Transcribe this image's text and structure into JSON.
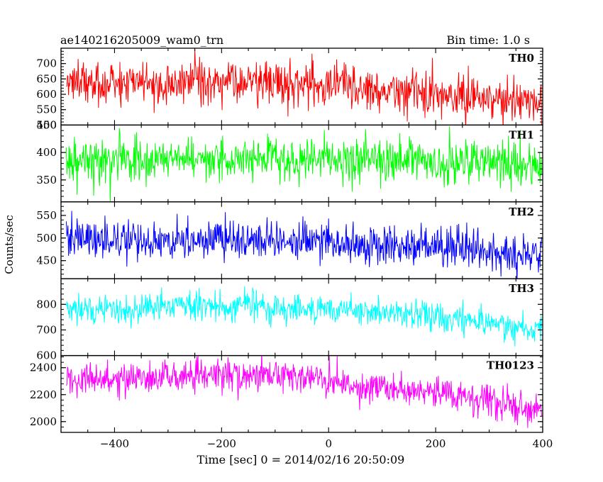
{
  "chart_data": {
    "type": "line",
    "title": "ae140216205009_wam0_trn",
    "subtitle": "Bin time: 1.0 s",
    "xlabel": "Time [sec] 0 = 2014/02/16 20:50:09",
    "ylabel": "Counts/sec",
    "xlim": [
      -500,
      400
    ],
    "xticks": [
      "-400",
      "-200",
      "0",
      "200",
      "400"
    ],
    "bin_time_s": 1.0,
    "grid": false,
    "panels": [
      {
        "name": "TH0",
        "color": "#ff0000",
        "ylim": [
          500,
          750
        ],
        "yticks": [
          "500",
          "550",
          "600",
          "650",
          "700"
        ],
        "trend": {
          "x": [
            -500,
            -300,
            -100,
            0,
            100,
            200,
            300,
            400
          ],
          "y": [
            635,
            640,
            640,
            630,
            615,
            600,
            585,
            565
          ]
        },
        "noise_sd": 35
      },
      {
        "name": "TH1",
        "color": "#00ff00",
        "ylim": [
          310,
          450
        ],
        "yticks": [
          "350",
          "400",
          "450"
        ],
        "trend": {
          "x": [
            -500,
            0,
            200,
            400
          ],
          "y": [
            388,
            388,
            385,
            380
          ]
        },
        "noise_sd": 20
      },
      {
        "name": "TH2",
        "color": "#0000ff",
        "ylim": [
          410,
          580
        ],
        "yticks": [
          "450",
          "500",
          "550"
        ],
        "trend": {
          "x": [
            -500,
            -200,
            0,
            200,
            400
          ],
          "y": [
            495,
            495,
            490,
            480,
            465
          ]
        },
        "noise_sd": 22
      },
      {
        "name": "TH3",
        "color": "#00ffff",
        "ylim": [
          600,
          900
        ],
        "yticks": [
          "600",
          "700",
          "800"
        ],
        "trend": {
          "x": [
            -500,
            -200,
            0,
            200,
            300,
            400
          ],
          "y": [
            780,
            795,
            785,
            755,
            725,
            695
          ]
        },
        "noise_sd": 28
      },
      {
        "name": "TH0123",
        "color": "#ff00ff",
        "ylim": [
          1920,
          2490
        ],
        "yticks": [
          "2000",
          "2200",
          "2400"
        ],
        "trend": {
          "x": [
            -500,
            -200,
            -50,
            50,
            200,
            300,
            400
          ],
          "y": [
            2310,
            2335,
            2340,
            2270,
            2220,
            2150,
            2080
          ]
        },
        "noise_sd": 60
      }
    ]
  }
}
